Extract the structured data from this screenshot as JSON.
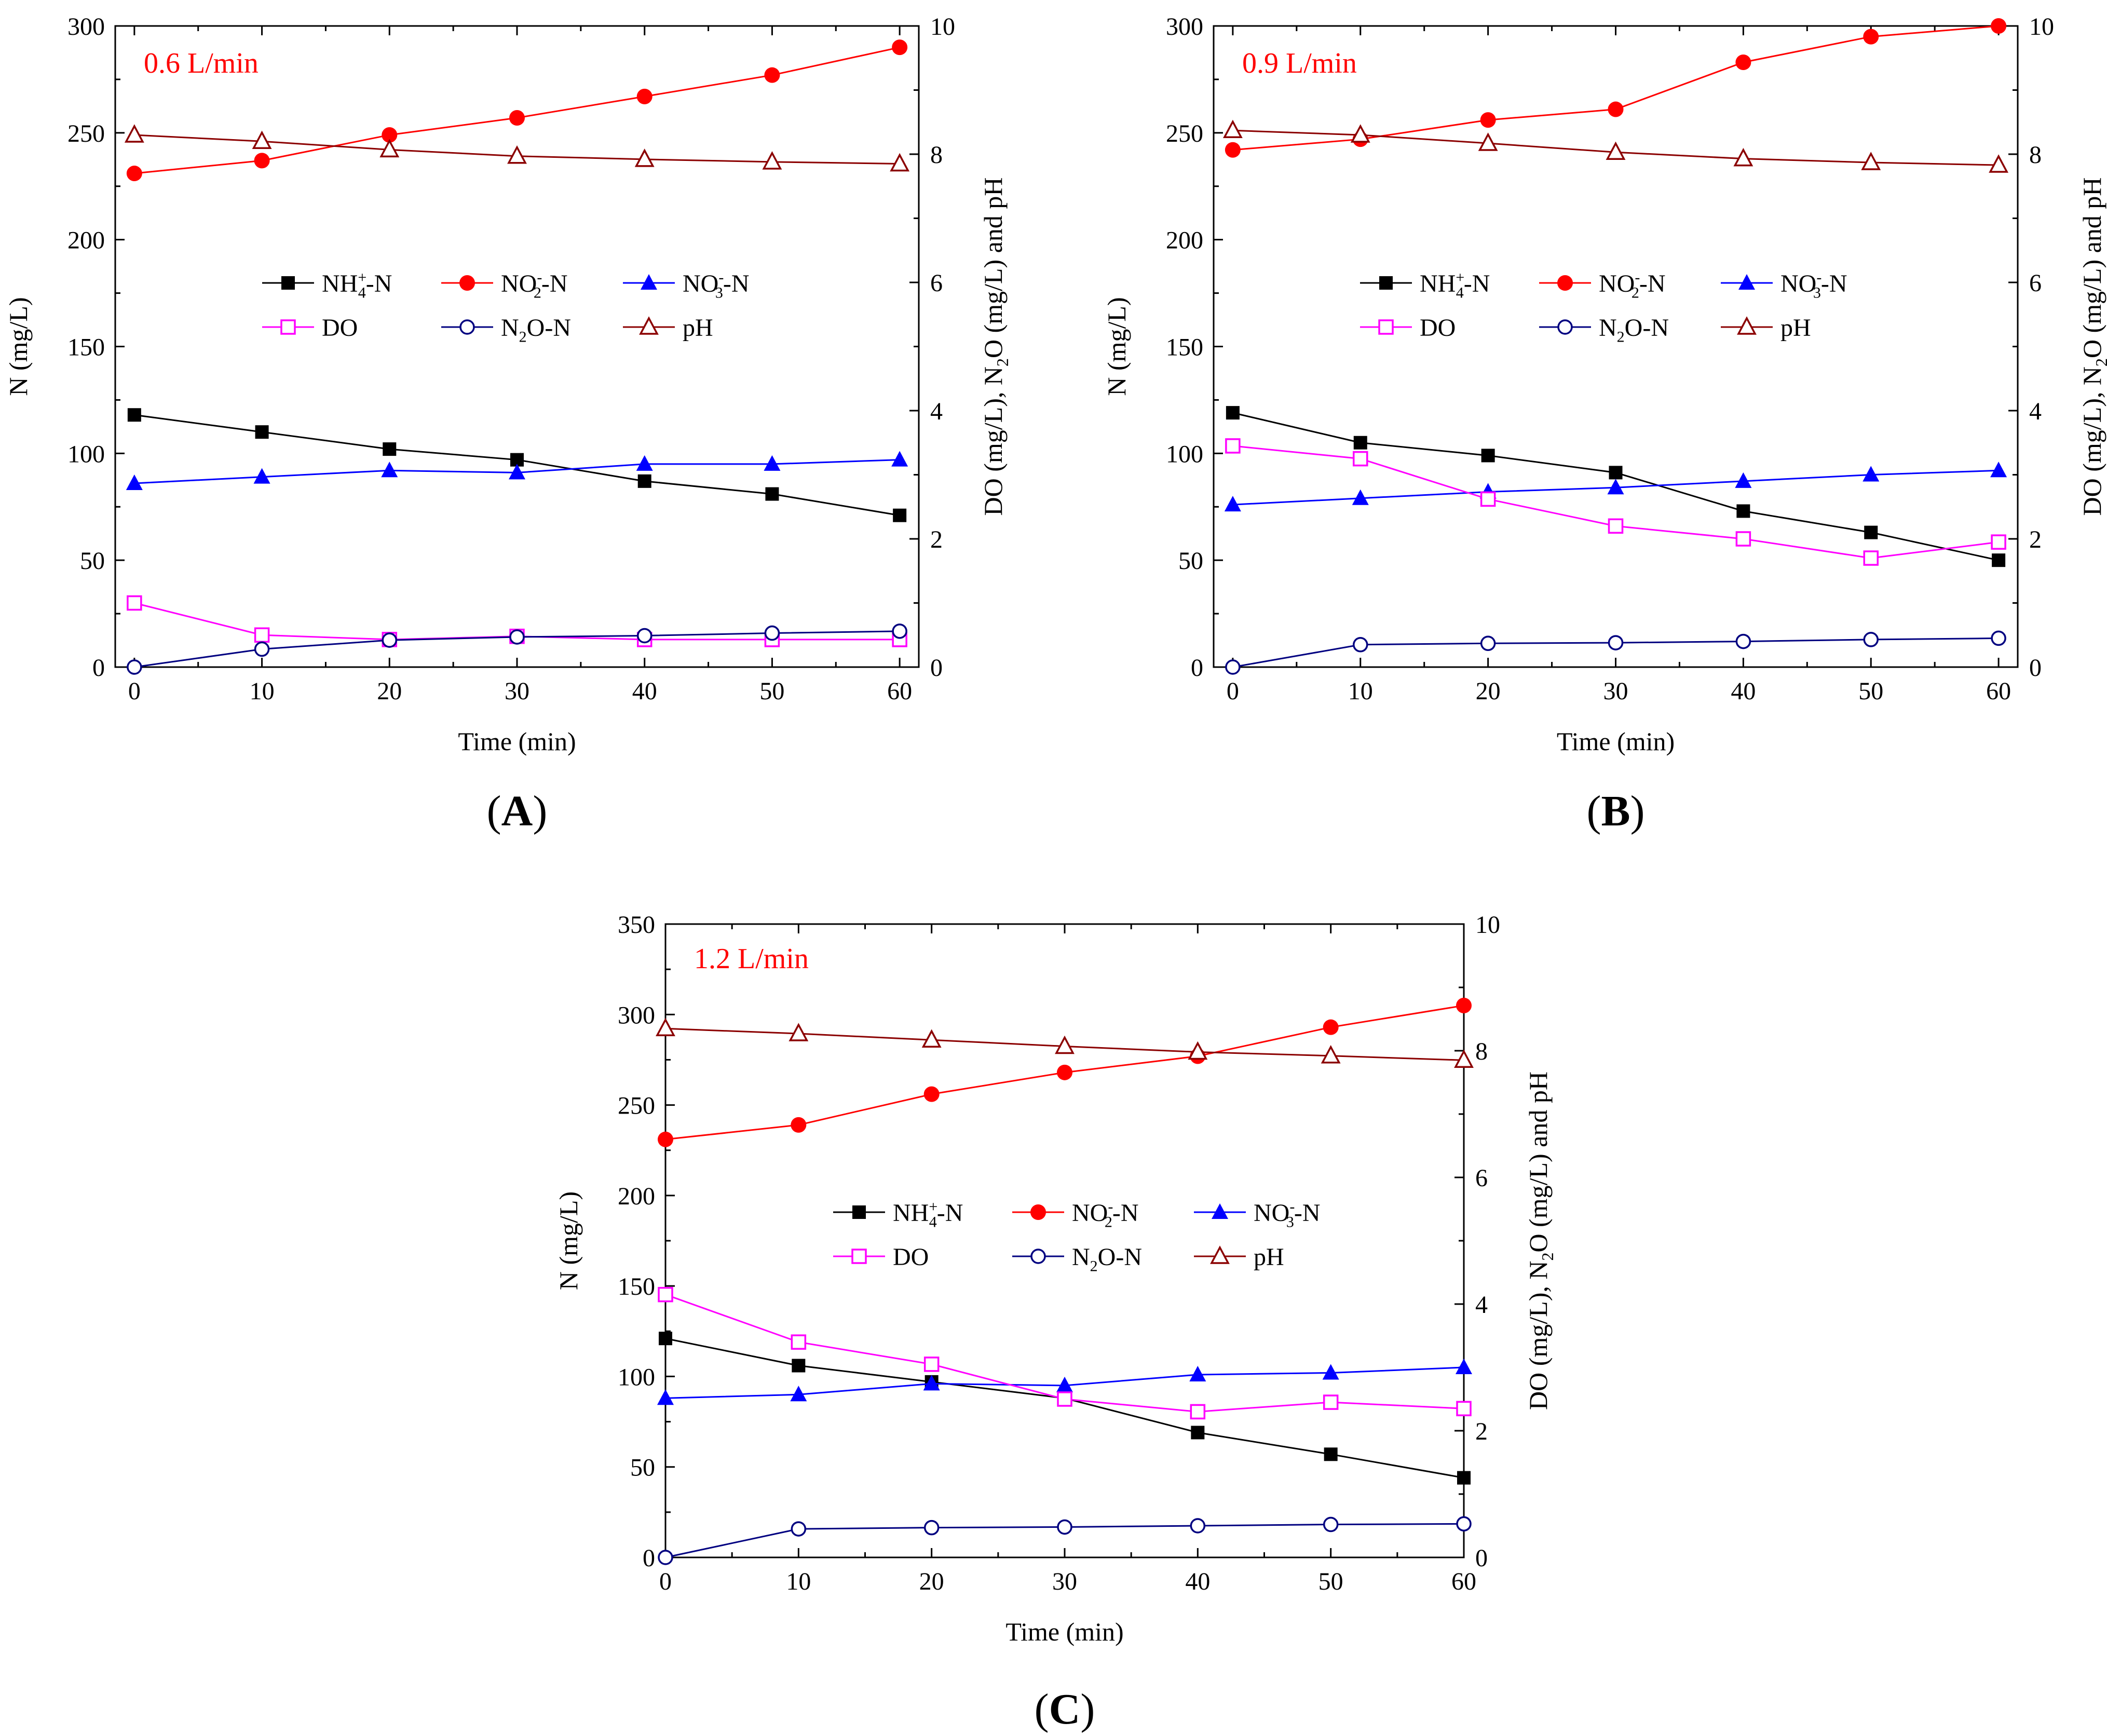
{
  "figure": {
    "x_label": "Time (min)",
    "y_left_label": "N (mg/L)",
    "y_right_label_parts": [
      "DO (mg/L), N",
      "2",
      "O (mg/L) and pH"
    ],
    "legend_labels": {
      "nh4": [
        "NH",
        "4",
        "+",
        "-N"
      ],
      "no2": [
        "NO",
        "2",
        "-",
        "-N"
      ],
      "no3": [
        "NO",
        "3",
        "-",
        "-N"
      ],
      "do": "DO",
      "n2o": [
        "N",
        "2",
        "O-N"
      ],
      "ph": "pH"
    },
    "series_colors": {
      "nh4": "#000000",
      "no2": "#ff0000",
      "no3": "#0000ff",
      "do": "#ff00ff",
      "n2o": "#000080",
      "ph": "#8b0000"
    },
    "annotation_color": "#ff0000"
  },
  "chart_data": [
    {
      "type": "line",
      "panel_label": "(A)",
      "panel_label_parts": [
        "(",
        "A",
        ")"
      ],
      "annotation": "0.6 L/min",
      "xlabel": "Time (min)",
      "ylabel_left": "N (mg/L)",
      "ylabel_right": "DO (mg/L), N2O (mg/L) and pH",
      "x": [
        0,
        10,
        20,
        30,
        40,
        50,
        60
      ],
      "x_ticks": [
        "0",
        "10",
        "20",
        "30",
        "40",
        "50",
        "60"
      ],
      "xlim": [
        -1.5,
        61.5
      ],
      "ylim_left": [
        0,
        300
      ],
      "ylim_right": [
        0,
        10
      ],
      "y_left_ticks": [
        "0",
        "50",
        "100",
        "150",
        "200",
        "250",
        "300"
      ],
      "y_right_ticks": [
        "0",
        "2",
        "4",
        "6",
        "8",
        "10"
      ],
      "series": [
        {
          "key": "nh4",
          "name": "NH4+-N",
          "axis": "left",
          "values": [
            118,
            110,
            102,
            97,
            87,
            81,
            71
          ]
        },
        {
          "key": "no2",
          "name": "NO2--N",
          "axis": "left",
          "values": [
            231,
            237,
            249,
            257,
            267,
            277,
            290
          ]
        },
        {
          "key": "no3",
          "name": "NO3--N",
          "axis": "left",
          "values": [
            86,
            89,
            92,
            91,
            95,
            95,
            97
          ]
        },
        {
          "key": "do",
          "name": "DO",
          "axis": "right",
          "values": [
            1.0,
            0.5,
            0.43,
            0.48,
            0.43,
            0.43,
            0.43
          ]
        },
        {
          "key": "n2o",
          "name": "N2O-N",
          "axis": "right",
          "values": [
            0.0,
            0.28,
            0.42,
            0.47,
            0.49,
            0.53,
            0.56
          ]
        },
        {
          "key": "ph",
          "name": "pH",
          "axis": "right",
          "values": [
            8.3,
            8.2,
            8.07,
            7.97,
            7.92,
            7.88,
            7.85
          ]
        }
      ]
    },
    {
      "type": "line",
      "panel_label": "(B)",
      "panel_label_parts": [
        "(",
        "B",
        ")"
      ],
      "annotation": "0.9 L/min",
      "xlabel": "Time (min)",
      "ylabel_left": "N (mg/L)",
      "ylabel_right": "DO (mg/L), N2O (mg/L) and pH",
      "x": [
        0,
        10,
        20,
        30,
        40,
        50,
        60
      ],
      "x_ticks": [
        "0",
        "10",
        "20",
        "30",
        "40",
        "50",
        "60"
      ],
      "xlim": [
        -1.5,
        61.5
      ],
      "ylim_left": [
        0,
        300
      ],
      "ylim_right": [
        0,
        10
      ],
      "y_left_ticks": [
        "0",
        "50",
        "100",
        "150",
        "200",
        "250",
        "300"
      ],
      "y_right_ticks": [
        "0",
        "2",
        "4",
        "6",
        "8",
        "10"
      ],
      "series": [
        {
          "key": "nh4",
          "name": "NH4+-N",
          "axis": "left",
          "values": [
            119,
            105,
            99,
            91,
            73,
            63,
            50
          ]
        },
        {
          "key": "no2",
          "name": "NO2--N",
          "axis": "left",
          "values": [
            242,
            247,
            256,
            261,
            283,
            295,
            300
          ]
        },
        {
          "key": "no3",
          "name": "NO3--N",
          "axis": "left",
          "values": [
            76,
            79,
            82,
            84,
            87,
            90,
            92
          ]
        },
        {
          "key": "do",
          "name": "DO",
          "axis": "right",
          "values": [
            3.45,
            3.25,
            2.62,
            2.2,
            2.0,
            1.7,
            1.95
          ]
        },
        {
          "key": "n2o",
          "name": "N2O-N",
          "axis": "right",
          "values": [
            0.0,
            0.35,
            0.37,
            0.38,
            0.4,
            0.43,
            0.45
          ]
        },
        {
          "key": "ph",
          "name": "pH",
          "axis": "right",
          "values": [
            8.37,
            8.3,
            8.17,
            8.03,
            7.93,
            7.87,
            7.83
          ]
        }
      ]
    },
    {
      "type": "line",
      "panel_label": "(C)",
      "panel_label_parts": [
        "(",
        "C",
        ")"
      ],
      "annotation": "1.2 L/min",
      "xlabel": "Time (min)",
      "ylabel_left": "N (mg/L)",
      "ylabel_right": "DO (mg/L), N2O (mg/L) and pH",
      "x": [
        0,
        10,
        20,
        30,
        40,
        50,
        60
      ],
      "x_ticks": [
        "0",
        "10",
        "20",
        "30",
        "40",
        "50",
        "60"
      ],
      "xlim": [
        0,
        60
      ],
      "ylim_left": [
        0,
        350
      ],
      "ylim_right": [
        0,
        10
      ],
      "y_left_ticks": [
        "0",
        "50",
        "100",
        "150",
        "200",
        "250",
        "300",
        "350"
      ],
      "y_right_ticks": [
        "0",
        "2",
        "4",
        "6",
        "8",
        "10"
      ],
      "series": [
        {
          "key": "nh4",
          "name": "NH4+-N",
          "axis": "left",
          "values": [
            121,
            106,
            97,
            88,
            69,
            57,
            44
          ]
        },
        {
          "key": "no2",
          "name": "NO2--N",
          "axis": "left",
          "values": [
            231,
            239,
            256,
            268,
            277,
            293,
            305
          ]
        },
        {
          "key": "no3",
          "name": "NO3--N",
          "axis": "left",
          "values": [
            88,
            90,
            96,
            95,
            101,
            102,
            105
          ]
        },
        {
          "key": "do",
          "name": "DO",
          "axis": "right",
          "values": [
            4.15,
            3.4,
            3.05,
            2.5,
            2.3,
            2.45,
            2.35
          ]
        },
        {
          "key": "n2o",
          "name": "N2O-N",
          "axis": "right",
          "values": [
            0.0,
            0.45,
            0.47,
            0.48,
            0.5,
            0.52,
            0.53
          ]
        },
        {
          "key": "ph",
          "name": "pH",
          "axis": "right",
          "values": [
            8.35,
            8.27,
            8.17,
            8.07,
            7.98,
            7.92,
            7.85
          ]
        }
      ]
    }
  ]
}
